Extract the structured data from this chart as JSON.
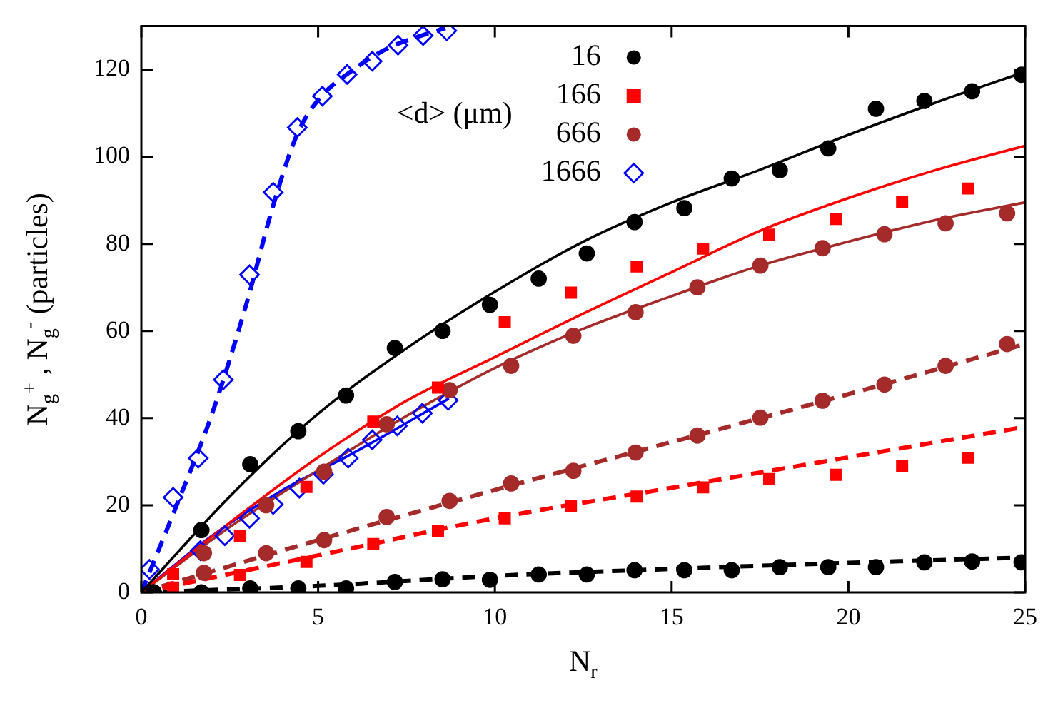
{
  "chart_data": {
    "type": "scatter",
    "xlabel": "N$_{r}$",
    "ylabel": "N$_{g}$$^{+}$ , N$_{g}$$^{-}$ (particles)",
    "legend_title": "<d> (μm)",
    "legend": "top",
    "grid": false,
    "xlim": [
      0,
      25
    ],
    "xticks": [
      0,
      5,
      10,
      15,
      20,
      25
    ],
    "ylim": [
      0,
      130
    ],
    "yticks": [
      0,
      20,
      40,
      60,
      80,
      100,
      120
    ],
    "series": [
      {
        "name": "16",
        "marker": "circle",
        "color": "#000000",
        "x": [
          0.35,
          1.7,
          3.08,
          4.44,
          5.79,
          7.17,
          8.52,
          9.86,
          11.24,
          12.6,
          13.95,
          15.36,
          16.7,
          18.06,
          19.43,
          20.78,
          22.15,
          23.5,
          24.9
        ],
        "values": [
          0,
          14.3,
          29.4,
          37,
          45.2,
          56.1,
          60,
          66,
          72,
          77.8,
          85,
          88.2,
          95,
          96.9,
          101.9,
          111,
          112.8,
          115,
          118.8
        ]
      },
      {
        "name": "166",
        "marker": "square",
        "color": "#ff0000",
        "x": [
          0.9,
          2.79,
          4.67,
          6.56,
          8.39,
          10.28,
          12.15,
          14.01,
          15.89,
          17.76,
          19.64,
          21.52,
          23.38
        ],
        "values": [
          4.2,
          13,
          24.2,
          39.2,
          47,
          62,
          68.8,
          74.8,
          78.9,
          82.1,
          85.7,
          89.7,
          92.7
        ]
      },
      {
        "name": "666",
        "marker": "circle",
        "color": "#a52a2a",
        "x": [
          1.77,
          3.53,
          5.17,
          6.94,
          8.72,
          10.46,
          12.22,
          13.98,
          15.73,
          17.51,
          19.27,
          21.02,
          22.75,
          24.49
        ],
        "values": [
          9,
          20,
          27.7,
          38.6,
          46.4,
          52,
          58.9,
          64.3,
          70,
          75,
          79,
          82.2,
          84.7,
          87
        ]
      },
      {
        "name": "1666",
        "marker": "diamond",
        "color": "#0000ff",
        "x": [
          0.23,
          0.9,
          1.61,
          2.32,
          3.06,
          3.73,
          4.41,
          5.12,
          5.82,
          6.53,
          7.26,
          7.97,
          8.64
        ],
        "values": [
          5.3,
          21.8,
          30.8,
          48.8,
          72.9,
          91.8,
          106.7,
          113.9,
          118.9,
          121.9,
          125.6,
          127.8,
          128.9
        ]
      },
      {
        "marker": "circle",
        "color": "#000000",
        "x": [
          0.35,
          1.7,
          3.08,
          4.44,
          5.79,
          7.17,
          8.52,
          9.86,
          11.24,
          12.6,
          13.95,
          15.36,
          16.7,
          18.06,
          19.43,
          20.78,
          22.15,
          23.5,
          24.9
        ],
        "values": [
          0,
          0,
          0.9,
          0.9,
          0.9,
          2.4,
          3,
          2.9,
          4.1,
          4.1,
          5.1,
          5.1,
          5.1,
          5.8,
          5.8,
          5.8,
          6.9,
          7.1,
          6.9
        ]
      },
      {
        "marker": "square",
        "color": "#ff0000",
        "x": [
          0.9,
          2.79,
          4.67,
          6.56,
          8.39,
          10.28,
          12.15,
          14.01,
          15.89,
          17.76,
          19.64,
          21.52,
          23.38
        ],
        "values": [
          1.1,
          4,
          7,
          11.1,
          14,
          17,
          19.9,
          22,
          24.1,
          26,
          27,
          29,
          30.9
        ]
      },
      {
        "marker": "circle",
        "color": "#a52a2a",
        "x": [
          1.77,
          3.53,
          5.17,
          6.94,
          8.72,
          10.46,
          12.22,
          13.98,
          15.73,
          17.51,
          19.27,
          21.02,
          22.75,
          24.49
        ],
        "values": [
          4.5,
          9,
          12,
          17.3,
          21,
          25,
          27.9,
          32.1,
          36,
          40.1,
          44,
          47.7,
          52,
          57
        ]
      },
      {
        "marker": "diamond",
        "color": "#0000ff",
        "x": [
          1.67,
          2.36,
          3.06,
          3.73,
          4.47,
          5.15,
          5.85,
          6.53,
          7.24,
          7.95,
          8.68
        ],
        "values": [
          9.6,
          13,
          17,
          20.2,
          23.9,
          27.1,
          30.8,
          35,
          38.2,
          41.1,
          44.1
        ]
      },
      {
        "type": "line",
        "marker": "none",
        "line_style": "solid",
        "color": "#000000",
        "x": [
          0,
          2.5,
          5,
          7.5,
          10,
          12.5,
          15,
          17.5,
          20,
          22.5,
          25
        ],
        "values": [
          0,
          22,
          41,
          56,
          69,
          80.5,
          89.5,
          97,
          105,
          112.5,
          119.5
        ]
      },
      {
        "type": "line",
        "marker": "none",
        "line_style": "solid",
        "color": "#ff0000",
        "x": [
          0,
          2.5,
          5,
          7.5,
          10,
          12.5,
          15,
          17.5,
          20,
          22.5,
          25
        ],
        "values": [
          0,
          16,
          31,
          44,
          54,
          64,
          73.5,
          83,
          90.5,
          97,
          102.5
        ]
      },
      {
        "type": "line",
        "marker": "none",
        "line_style": "solid",
        "color": "#a52a2a",
        "x": [
          0,
          2.5,
          5,
          7.5,
          10,
          12.5,
          15,
          17.5,
          20,
          22.5,
          25
        ],
        "values": [
          0,
          15,
          28,
          40.5,
          51.5,
          60.5,
          68,
          75,
          80.5,
          85.5,
          89.5
        ]
      },
      {
        "type": "line",
        "marker": "none",
        "line_style": "solid",
        "color": "#0000ff",
        "x": [
          0,
          2,
          4,
          6,
          8.7
        ],
        "values": [
          0,
          13,
          23.5,
          32,
          44.5
        ]
      },
      {
        "type": "line",
        "marker": "none",
        "line_style": "dashed",
        "color": "#000000",
        "x": [
          0,
          5,
          10,
          15,
          20,
          25
        ],
        "values": [
          0,
          1.5,
          3.8,
          5.4,
          6.8,
          8
        ]
      },
      {
        "type": "line",
        "marker": "none",
        "line_style": "dashed",
        "color": "#ff0000",
        "x": [
          0,
          5,
          10,
          15,
          20,
          25
        ],
        "values": [
          0,
          8.5,
          17,
          24,
          31,
          38
        ]
      },
      {
        "type": "line",
        "marker": "none",
        "line_style": "dashed",
        "color": "#a52a2a",
        "x": [
          0,
          5,
          10,
          15,
          20,
          25
        ],
        "values": [
          0,
          12,
          23.5,
          34.5,
          45.5,
          57
        ]
      },
      {
        "type": "line",
        "marker": "none",
        "line_style": "dashed",
        "color": "#0000ff",
        "x": [
          0,
          1,
          2,
          3,
          3.7,
          4.4,
          5,
          6,
          7,
          8,
          8.6
        ],
        "values": [
          0,
          20,
          41,
          67,
          88,
          105,
          113,
          120,
          125,
          128,
          129.5
        ]
      }
    ]
  }
}
